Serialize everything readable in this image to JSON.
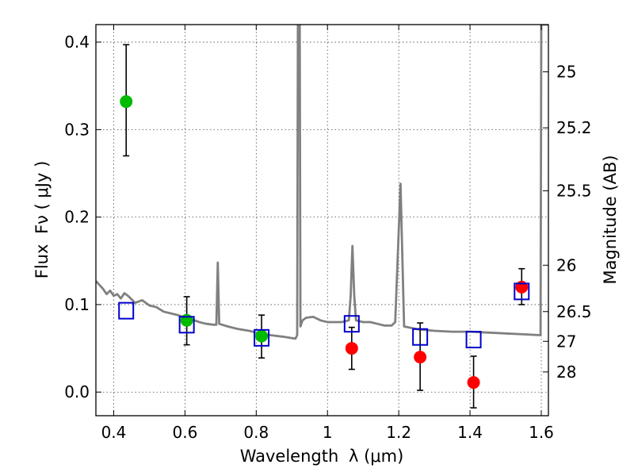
{
  "chart_data": {
    "type": "scatter",
    "xlabel_main": "Wavelength",
    "xlabel_symbol": "λ (μm)",
    "ylabel_main": "Flux",
    "ylabel_symbol": "Fν ( μJy )",
    "y2label": "Magnitude (AB)",
    "xlim": [
      0.35,
      1.62
    ],
    "ylim": [
      -0.027,
      0.42
    ],
    "grid": true,
    "x_ticks": [
      {
        "value": 0.4,
        "label": "0.4"
      },
      {
        "value": 0.6,
        "label": "0.6"
      },
      {
        "value": 0.8,
        "label": "0.8"
      },
      {
        "value": 1.0,
        "label": "1"
      },
      {
        "value": 1.2,
        "label": "1.2"
      },
      {
        "value": 1.4,
        "label": "1.4"
      },
      {
        "value": 1.6,
        "label": "1.6"
      }
    ],
    "y_ticks": [
      {
        "value": 0.0,
        "label": "0.0"
      },
      {
        "value": 0.1,
        "label": "0.1"
      },
      {
        "value": 0.2,
        "label": "0.2"
      },
      {
        "value": 0.3,
        "label": "0.3"
      },
      {
        "value": 0.4,
        "label": "0.4"
      }
    ],
    "y2_ticks": [
      {
        "flux": 0.366,
        "label": "25"
      },
      {
        "flux": 0.302,
        "label": "25.2"
      },
      {
        "flux": 0.23,
        "label": "25.5"
      },
      {
        "flux": 0.145,
        "label": "26"
      },
      {
        "flux": 0.092,
        "label": "26.5"
      },
      {
        "flux": 0.058,
        "label": "27"
      },
      {
        "flux": 0.023,
        "label": "28"
      }
    ],
    "colors": {
      "template": "#808080",
      "green": "#00bb00",
      "red": "#ff0000",
      "box": "#0000cc",
      "errorbar": "#000000"
    },
    "template_spectrum": [
      [
        0.35,
        0.127
      ],
      [
        0.37,
        0.118
      ],
      [
        0.38,
        0.112
      ],
      [
        0.39,
        0.116
      ],
      [
        0.4,
        0.11
      ],
      [
        0.41,
        0.112
      ],
      [
        0.42,
        0.107
      ],
      [
        0.43,
        0.113
      ],
      [
        0.44,
        0.11
      ],
      [
        0.46,
        0.102
      ],
      [
        0.48,
        0.105
      ],
      [
        0.5,
        0.099
      ],
      [
        0.52,
        0.097
      ],
      [
        0.54,
        0.092
      ],
      [
        0.56,
        0.09
      ],
      [
        0.58,
        0.088
      ],
      [
        0.6,
        0.085
      ],
      [
        0.62,
        0.083
      ],
      [
        0.64,
        0.08
      ],
      [
        0.66,
        0.078
      ],
      [
        0.68,
        0.077
      ],
      [
        0.688,
        0.077
      ],
      [
        0.692,
        0.148
      ],
      [
        0.696,
        0.078
      ],
      [
        0.72,
        0.075
      ],
      [
        0.75,
        0.072
      ],
      [
        0.78,
        0.07
      ],
      [
        0.8,
        0.068
      ],
      [
        0.84,
        0.065
      ],
      [
        0.88,
        0.063
      ],
      [
        0.91,
        0.061
      ],
      [
        0.915,
        0.065
      ],
      [
        0.917,
        0.42
      ],
      [
        0.922,
        0.42
      ],
      [
        0.924,
        0.075
      ],
      [
        0.93,
        0.082
      ],
      [
        0.94,
        0.085
      ],
      [
        0.96,
        0.086
      ],
      [
        0.98,
        0.082
      ],
      [
        1.0,
        0.08
      ],
      [
        1.02,
        0.08
      ],
      [
        1.04,
        0.08
      ],
      [
        1.06,
        0.082
      ],
      [
        1.065,
        0.11
      ],
      [
        1.07,
        0.167
      ],
      [
        1.075,
        0.11
      ],
      [
        1.08,
        0.082
      ],
      [
        1.1,
        0.08
      ],
      [
        1.12,
        0.08
      ],
      [
        1.14,
        0.078
      ],
      [
        1.16,
        0.076
      ],
      [
        1.18,
        0.076
      ],
      [
        1.19,
        0.08
      ],
      [
        1.205,
        0.238
      ],
      [
        1.215,
        0.075
      ],
      [
        1.25,
        0.072
      ],
      [
        1.3,
        0.07
      ],
      [
        1.35,
        0.069
      ],
      [
        1.4,
        0.069
      ],
      [
        1.45,
        0.068
      ],
      [
        1.5,
        0.067
      ],
      [
        1.55,
        0.066
      ],
      [
        1.598,
        0.065
      ],
      [
        1.6,
        0.42
      ],
      [
        1.62,
        0.42
      ]
    ],
    "series": [
      {
        "marker": "filled-circle",
        "color": "green",
        "points": [
          {
            "x": 0.435,
            "y": 0.332,
            "err_lo": 0.27,
            "err_hi": 0.397
          },
          {
            "x": 0.605,
            "y": 0.082,
            "err_lo": 0.054,
            "err_hi": 0.109
          },
          {
            "x": 0.815,
            "y": 0.064,
            "err_lo": 0.039,
            "err_hi": 0.088
          }
        ]
      },
      {
        "marker": "filled-circle",
        "color": "red",
        "points": [
          {
            "x": 1.068,
            "y": 0.05,
            "err_lo": 0.026,
            "err_hi": 0.074
          },
          {
            "x": 1.26,
            "y": 0.04,
            "err_lo": 0.002,
            "err_hi": 0.079
          },
          {
            "x": 1.41,
            "y": 0.011,
            "err_lo": -0.018,
            "err_hi": 0.041
          },
          {
            "x": 1.545,
            "y": 0.12,
            "err_lo": 0.1,
            "err_hi": 0.141
          }
        ]
      },
      {
        "marker": "open-square",
        "color": "box",
        "points": [
          {
            "x": 0.435,
            "y": 0.093
          },
          {
            "x": 0.605,
            "y": 0.077
          },
          {
            "x": 0.815,
            "y": 0.062
          },
          {
            "x": 1.068,
            "y": 0.078
          },
          {
            "x": 1.26,
            "y": 0.063
          },
          {
            "x": 1.41,
            "y": 0.06
          },
          {
            "x": 1.545,
            "y": 0.115
          }
        ]
      }
    ]
  }
}
